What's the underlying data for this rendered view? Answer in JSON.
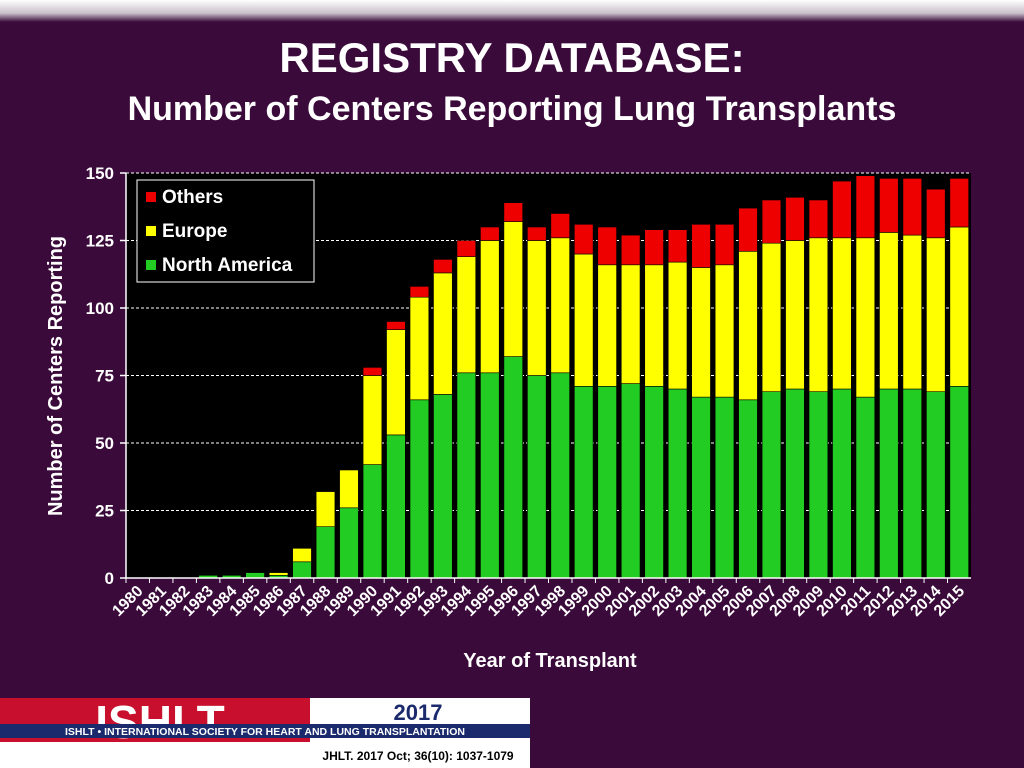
{
  "header": {
    "title": "REGISTRY DATABASE:",
    "subtitle": "Number of Centers Reporting Lung Transplants"
  },
  "footer": {
    "logo_text": "ISHLT",
    "org_name": "ISHLT • INTERNATIONAL SOCIETY FOR HEART AND LUNG TRANSPLANTATION",
    "year": "2017",
    "citation": "JHLT. 2017 Oct; 36(10): 1037-1079"
  },
  "colors": {
    "background": "#3a0a3a",
    "north_america": "#22cc22",
    "europe": "#ffff00",
    "others": "#ee0000",
    "logo_red": "#c8102e"
  },
  "chart_data": {
    "type": "bar",
    "stacked": true,
    "xlabel": "Year of Transplant",
    "ylabel": "Number of Centers Reporting",
    "ylim": [
      0,
      150
    ],
    "yticks": [
      0,
      25,
      50,
      75,
      100,
      125,
      150
    ],
    "grid": true,
    "legend_position": "top-left",
    "categories": [
      "1980",
      "1981",
      "1982",
      "1983",
      "1984",
      "1985",
      "1986",
      "1987",
      "1988",
      "1989",
      "1990",
      "1991",
      "1992",
      "1993",
      "1994",
      "1995",
      "1996",
      "1997",
      "1998",
      "1999",
      "2000",
      "2001",
      "2002",
      "2003",
      "2004",
      "2005",
      "2006",
      "2007",
      "2008",
      "2009",
      "2010",
      "2011",
      "2012",
      "2013",
      "2014",
      "2015"
    ],
    "series": [
      {
        "name": "North America",
        "color": "#22cc22",
        "values": [
          0,
          0,
          0,
          1,
          1,
          2,
          1,
          6,
          19,
          26,
          42,
          53,
          66,
          68,
          76,
          76,
          82,
          75,
          76,
          71,
          71,
          72,
          71,
          70,
          67,
          67,
          66,
          69,
          70,
          69,
          70,
          67,
          70,
          70,
          69,
          71
        ]
      },
      {
        "name": "Europe",
        "color": "#ffff00",
        "values": [
          0,
          0,
          0,
          0,
          0,
          0,
          1,
          5,
          13,
          14,
          33,
          39,
          38,
          45,
          43,
          49,
          50,
          50,
          50,
          49,
          45,
          44,
          45,
          47,
          48,
          49,
          55,
          55,
          55,
          57,
          56,
          59,
          58,
          57,
          57,
          59
        ]
      },
      {
        "name": "Others",
        "color": "#ee0000",
        "values": [
          0,
          0,
          0,
          0,
          0,
          0,
          0,
          0,
          0,
          0,
          3,
          3,
          4,
          5,
          6,
          5,
          7,
          5,
          9,
          11,
          14,
          11,
          13,
          12,
          16,
          15,
          16,
          16,
          16,
          14,
          21,
          23,
          20,
          21,
          18,
          18
        ]
      }
    ]
  }
}
